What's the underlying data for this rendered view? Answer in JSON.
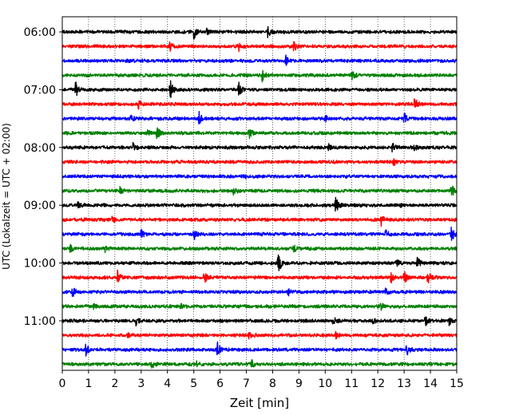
{
  "chart_data": {
    "type": "line",
    "title": "",
    "xlabel": "Zeit  [min]",
    "ylabel": "UTC (Lokalzeit = UTC + 02:00)",
    "xlim": [
      0,
      15
    ],
    "x_ticks": [
      0,
      1,
      2,
      3,
      4,
      5,
      6,
      7,
      8,
      9,
      10,
      11,
      12,
      13,
      14,
      15
    ],
    "x_tick_labels": [
      "0",
      "1",
      "2",
      "3",
      "4",
      "5",
      "6",
      "7",
      "8",
      "9",
      "10",
      "11",
      "12",
      "13",
      "14",
      "15"
    ],
    "grid": "vertical dotted at each minute",
    "y_tick_labels": [
      "06:00",
      "07:00",
      "08:00",
      "09:00",
      "10:00",
      "11:00"
    ],
    "trace_interval_min": 15,
    "trace_count": 24,
    "colors": [
      "#000000",
      "#ff0000",
      "#0000ff",
      "#008000"
    ],
    "series": [
      {
        "start": "06:00",
        "events": [
          [
            5.0,
            0.9
          ],
          [
            5.5,
            0.4
          ],
          [
            7.8,
            0.7
          ]
        ]
      },
      {
        "start": "06:15",
        "events": [
          [
            4.1,
            0.6
          ],
          [
            6.7,
            0.6
          ],
          [
            8.8,
            0.8
          ]
        ]
      },
      {
        "start": "06:30",
        "events": [
          [
            8.5,
            0.6
          ]
        ]
      },
      {
        "start": "06:45",
        "events": [
          [
            7.6,
            0.7
          ],
          [
            11.0,
            0.7
          ]
        ]
      },
      {
        "start": "07:00",
        "events": [
          [
            0.5,
            1.0
          ],
          [
            4.1,
            1.3
          ],
          [
            6.7,
            1.0
          ]
        ]
      },
      {
        "start": "07:15",
        "events": [
          [
            2.9,
            0.5
          ],
          [
            13.4,
            1.0
          ]
        ]
      },
      {
        "start": "07:30",
        "events": [
          [
            2.6,
            0.7
          ],
          [
            5.2,
            0.8
          ],
          [
            10.0,
            0.4
          ],
          [
            13.0,
            0.7
          ]
        ]
      },
      {
        "start": "07:45",
        "events": [
          [
            3.2,
            0.5
          ],
          [
            3.6,
            0.8
          ],
          [
            7.1,
            0.8
          ]
        ]
      },
      {
        "start": "08:00",
        "events": [
          [
            2.7,
            0.7
          ],
          [
            10.1,
            0.4
          ],
          [
            12.5,
            1.0
          ],
          [
            13.4,
            0.4
          ]
        ]
      },
      {
        "start": "08:15",
        "events": [
          [
            12.6,
            0.5
          ]
        ]
      },
      {
        "start": "08:30",
        "events": [
          [
            6.9,
            0.3
          ]
        ]
      },
      {
        "start": "08:45",
        "events": [
          [
            2.2,
            0.4
          ],
          [
            6.5,
            0.7
          ],
          [
            14.8,
            0.8
          ]
        ]
      },
      {
        "start": "09:00",
        "events": [
          [
            0.6,
            0.5
          ],
          [
            10.4,
            1.0
          ],
          [
            12.8,
            0.3
          ]
        ]
      },
      {
        "start": "09:15",
        "events": [
          [
            1.9,
            0.4
          ],
          [
            12.1,
            1.0
          ]
        ]
      },
      {
        "start": "09:30",
        "events": [
          [
            3.0,
            0.6
          ],
          [
            5.0,
            0.8
          ],
          [
            12.3,
            0.7
          ],
          [
            14.8,
            1.0
          ]
        ]
      },
      {
        "start": "09:45",
        "events": [
          [
            0.3,
            0.5
          ],
          [
            1.6,
            0.6
          ],
          [
            8.8,
            0.5
          ]
        ]
      },
      {
        "start": "10:00",
        "events": [
          [
            8.2,
            1.8
          ],
          [
            12.7,
            0.5
          ],
          [
            13.5,
            0.7
          ]
        ]
      },
      {
        "start": "10:15",
        "events": [
          [
            2.1,
            0.8
          ],
          [
            5.4,
            0.8
          ],
          [
            12.5,
            0.7
          ],
          [
            13.0,
            0.8
          ],
          [
            13.9,
            0.8
          ]
        ]
      },
      {
        "start": "10:30",
        "events": [
          [
            0.4,
            0.7
          ],
          [
            8.6,
            0.4
          ],
          [
            12.3,
            0.5
          ]
        ]
      },
      {
        "start": "10:45",
        "events": [
          [
            1.2,
            0.3
          ],
          [
            4.5,
            0.4
          ],
          [
            12.1,
            0.6
          ]
        ]
      },
      {
        "start": "11:00",
        "events": [
          [
            2.8,
            0.5
          ],
          [
            10.3,
            0.5
          ],
          [
            11.8,
            0.4
          ],
          [
            13.8,
            0.7
          ],
          [
            14.7,
            0.6
          ]
        ]
      },
      {
        "start": "11:15",
        "events": [
          [
            2.5,
            0.4
          ],
          [
            7.1,
            0.4
          ],
          [
            10.4,
            0.4
          ]
        ]
      },
      {
        "start": "11:30",
        "events": [
          [
            0.9,
            0.8
          ],
          [
            5.9,
            1.0
          ],
          [
            13.1,
            0.7
          ]
        ]
      },
      {
        "start": "11:45",
        "events": [
          [
            3.4,
            0.5
          ],
          [
            5.1,
            0.5
          ],
          [
            7.2,
            0.5
          ]
        ]
      }
    ]
  }
}
